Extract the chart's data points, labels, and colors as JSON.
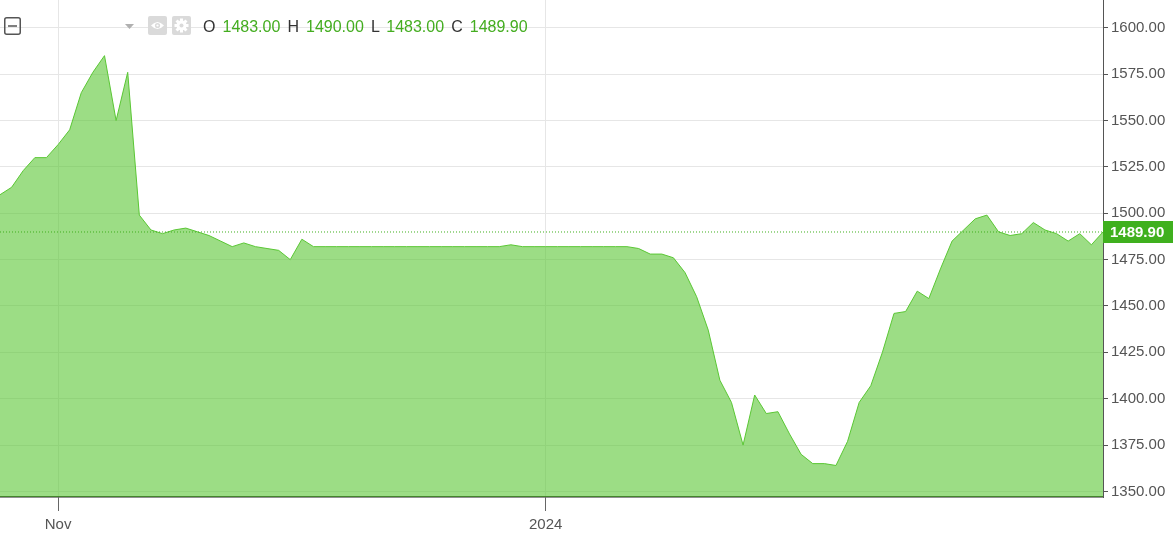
{
  "chart_data": {
    "type": "area",
    "subtitle": "O 1483.00 H 1490.00 L 1483.00 C 1489.90",
    "categories": [
      null,
      null,
      null,
      null,
      null,
      "Nov",
      null,
      null,
      null,
      null,
      null,
      null,
      null,
      null,
      null,
      null,
      null,
      null,
      null,
      null,
      null,
      null,
      null,
      null,
      null,
      null,
      null,
      null,
      null,
      null,
      null,
      null,
      null,
      null,
      null,
      null,
      null,
      null,
      null,
      null,
      null,
      null,
      null,
      null,
      null,
      null,
      null,
      "2024",
      null,
      null,
      null,
      null,
      null,
      null,
      null,
      null,
      null,
      null,
      null,
      null,
      null,
      null,
      null,
      null,
      null,
      null,
      null,
      null,
      null,
      null,
      null,
      null,
      null,
      null,
      null,
      null,
      null,
      null,
      null,
      null,
      null,
      null,
      null,
      null,
      null,
      null,
      null,
      null,
      null,
      null,
      null,
      null,
      null,
      null,
      null,
      null
    ],
    "values": [
      1510,
      1514,
      1523,
      1530,
      1530,
      1537,
      1545,
      1565,
      1576,
      1585,
      1550,
      1576,
      1499,
      1491,
      1489,
      1491,
      1492,
      1490,
      1488,
      1485,
      1482,
      1484,
      1482,
      1481,
      1480,
      1475,
      1486,
      1482,
      1482,
      1482,
      1482,
      1482,
      1482,
      1482,
      1482,
      1482,
      1482,
      1482,
      1482,
      1482,
      1482,
      1482,
      1482,
      1482,
      1483,
      1482,
      1482,
      1482,
      1482,
      1482,
      1482,
      1482,
      1482,
      1482,
      1482,
      1481,
      1478,
      1478,
      1476,
      1468,
      1455,
      1437,
      1410,
      1398,
      1375,
      1402,
      1392,
      1393,
      1381,
      1370,
      1365,
      1365,
      1364,
      1377,
      1398,
      1407,
      1425,
      1446,
      1447,
      1458,
      1454,
      1470,
      1485,
      1491,
      1497,
      1499,
      1490,
      1488,
      1489,
      1495,
      1491,
      1489,
      1485,
      1489,
      1483,
      1489.9
    ],
    "color": "#5ac734",
    "ylim": [
      1347,
      1615
    ],
    "yticks": [
      {
        "value": 1350,
        "label": "1350.00"
      },
      {
        "value": 1375,
        "label": "1375.00"
      },
      {
        "value": 1400,
        "label": "1400.00"
      },
      {
        "value": 1425,
        "label": "1425.00"
      },
      {
        "value": 1450,
        "label": "1450.00"
      },
      {
        "value": 1475,
        "label": "1475.00"
      },
      {
        "value": 1500,
        "label": "1500.00"
      },
      {
        "value": 1525,
        "label": "1525.00"
      },
      {
        "value": 1550,
        "label": "1550.00"
      },
      {
        "value": 1575,
        "label": "1575.00"
      },
      {
        "value": 1600,
        "label": "1600.00"
      }
    ],
    "grid": true,
    "ref_lines": [
      {
        "axis": "y",
        "value": 1489.9,
        "label": "1489.90",
        "color": "#3fb01e",
        "line_style": "dotted"
      }
    ]
  }
}
